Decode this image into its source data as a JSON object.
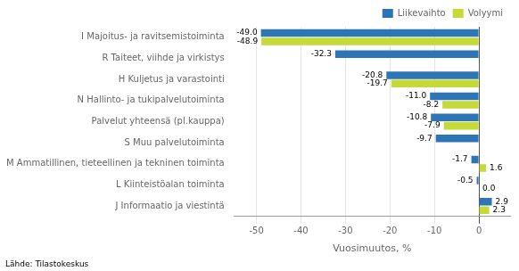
{
  "chart_data": {
    "type": "bar",
    "orientation": "horizontal",
    "categories": [
      "I Majoitus- ja ravitsemistoiminta",
      "R Taiteet, viihde ja virkistys",
      "H Kuljetus ja varastointi",
      "N Hallinto- ja tukipalvelutoiminta",
      "Palvelut yhteensä (pl.kauppa)",
      "S Muu palvelutoiminta",
      "M Ammatillinen, tieteellinen ja tekninen toiminta",
      "L Kiinteistöalan toiminta",
      "J Informaatio ja viestintä"
    ],
    "series": [
      {
        "name": "Liikevaihto",
        "color": "#2E75B6",
        "values": [
          -49.0,
          -32.3,
          -20.8,
          -11.0,
          -10.8,
          -9.7,
          -1.7,
          -0.5,
          2.9
        ],
        "value_labels": [
          "-49.0",
          "-32.3",
          "-20.8",
          "-11.0",
          "-10.8",
          "-9.7",
          "-1.7",
          "-0.5",
          "2.9"
        ]
      },
      {
        "name": "Volyymi",
        "color": "#C5D938",
        "values": [
          -48.9,
          null,
          -19.7,
          -8.2,
          -7.9,
          null,
          1.6,
          0.0,
          2.3
        ],
        "value_labels": [
          "-48.9",
          null,
          "-19.7",
          "-8.2",
          "-7.9",
          null,
          "1.6",
          "0.0",
          "2.3"
        ]
      }
    ],
    "xlabel": "Vuosimuutos, %",
    "xlim": [
      -55,
      7
    ],
    "xticks": [
      -50,
      -40,
      -30,
      -20,
      -10,
      0
    ],
    "grid": true,
    "legend": "upper right",
    "data_labels": true,
    "annotations": [
      "Lähde: Tilastokeskus"
    ]
  }
}
